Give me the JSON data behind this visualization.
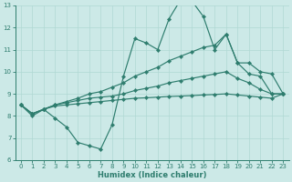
{
  "xlabel": "Humidex (Indice chaleur)",
  "xlim": [
    -0.5,
    23.5
  ],
  "ylim": [
    6,
    13
  ],
  "yticks": [
    6,
    7,
    8,
    9,
    10,
    11,
    12,
    13
  ],
  "xticks": [
    0,
    1,
    2,
    3,
    4,
    5,
    6,
    7,
    8,
    9,
    10,
    11,
    12,
    13,
    14,
    15,
    16,
    17,
    18,
    19,
    20,
    21,
    22,
    23
  ],
  "bg_color": "#cce9e7",
  "line_color": "#2e7d6e",
  "grid_color": "#b0d8d4",
  "series": {
    "line1_x": [
      0,
      1,
      2,
      3,
      4,
      5,
      6,
      7,
      8,
      9,
      10,
      11,
      12,
      13,
      14,
      15,
      16,
      17,
      18,
      19,
      20,
      21,
      22,
      23
    ],
    "line1_y": [
      8.5,
      8.0,
      8.3,
      7.9,
      7.5,
      6.8,
      6.65,
      6.5,
      7.6,
      9.8,
      11.5,
      11.3,
      11.0,
      12.4,
      13.25,
      13.2,
      12.5,
      11.0,
      11.7,
      10.4,
      9.9,
      9.8,
      9.0,
      9.0
    ],
    "line2_x": [
      0,
      1,
      2,
      3,
      4,
      5,
      6,
      7,
      8,
      9,
      10,
      11,
      12,
      13,
      14,
      15,
      16,
      17,
      18,
      19,
      20,
      21,
      22,
      23
    ],
    "line2_y": [
      8.5,
      8.1,
      8.3,
      8.5,
      8.65,
      8.8,
      9.0,
      9.1,
      9.3,
      9.5,
      9.8,
      10.0,
      10.2,
      10.5,
      10.7,
      10.9,
      11.1,
      11.2,
      11.7,
      10.4,
      10.4,
      10.0,
      9.9,
      9.0
    ],
    "line3_x": [
      0,
      1,
      2,
      3,
      4,
      5,
      6,
      7,
      8,
      9,
      10,
      11,
      12,
      13,
      14,
      15,
      16,
      17,
      18,
      19,
      20,
      21,
      22,
      23
    ],
    "line3_y": [
      8.5,
      8.1,
      8.3,
      8.5,
      8.6,
      8.7,
      8.8,
      8.85,
      8.9,
      9.0,
      9.15,
      9.25,
      9.35,
      9.5,
      9.6,
      9.7,
      9.8,
      9.9,
      10.0,
      9.7,
      9.5,
      9.2,
      9.0,
      9.0
    ],
    "line4_x": [
      0,
      1,
      2,
      3,
      4,
      5,
      6,
      7,
      8,
      9,
      10,
      11,
      12,
      13,
      14,
      15,
      16,
      17,
      18,
      19,
      20,
      21,
      22,
      23
    ],
    "line4_y": [
      8.5,
      8.1,
      8.3,
      8.45,
      8.5,
      8.55,
      8.6,
      8.65,
      8.7,
      8.75,
      8.8,
      8.82,
      8.85,
      8.88,
      8.9,
      8.92,
      8.95,
      8.97,
      9.0,
      8.95,
      8.9,
      8.85,
      8.8,
      9.0
    ]
  }
}
